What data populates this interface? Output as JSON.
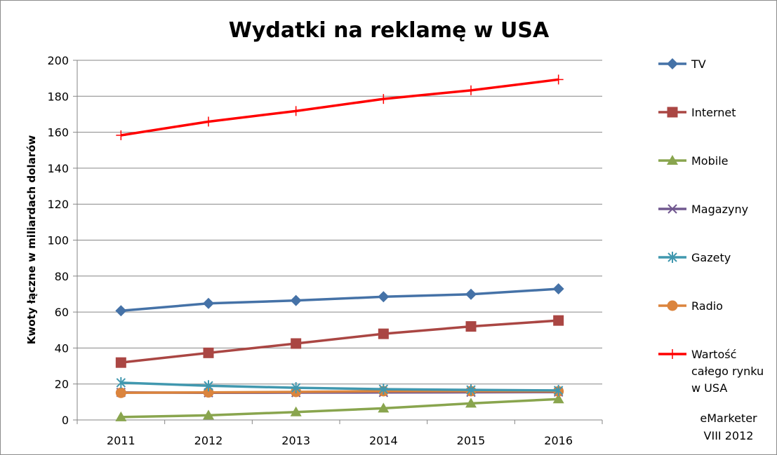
{
  "chart_data": {
    "type": "line",
    "title": "Wydatki na reklamę w USA",
    "xlabel": "",
    "ylabel": "Kwoty łączne w miliardach dolarów",
    "categories": [
      "2011",
      "2012",
      "2013",
      "2014",
      "2015",
      "2016"
    ],
    "ylim": [
      0,
      200
    ],
    "yticks": [
      0,
      20,
      40,
      60,
      80,
      100,
      120,
      140,
      160,
      180,
      200
    ],
    "grid": true,
    "legend_position": "right",
    "series": [
      {
        "name": "TV",
        "color": "#4572a7",
        "marker": "diamond",
        "values": [
          60.7,
          64.8,
          66.4,
          68.5,
          69.9,
          72.9
        ]
      },
      {
        "name": "Internet",
        "color": "#aa4643",
        "marker": "square",
        "values": [
          31.9,
          37.3,
          42.5,
          47.9,
          52.0,
          55.3
        ]
      },
      {
        "name": "Mobile",
        "color": "#89a54e",
        "marker": "triangle",
        "values": [
          1.6,
          2.6,
          4.4,
          6.5,
          9.2,
          11.6
        ]
      },
      {
        "name": "Magazyny",
        "color": "#71588f",
        "marker": "x",
        "values": [
          15.3,
          15.1,
          15.2,
          15.3,
          15.4,
          15.5
        ]
      },
      {
        "name": "Gazety",
        "color": "#4198af",
        "marker": "star",
        "values": [
          20.7,
          19.0,
          17.9,
          17.1,
          16.7,
          16.4
        ]
      },
      {
        "name": "Radio",
        "color": "#db843d",
        "marker": "circle",
        "values": [
          15.1,
          15.3,
          15.6,
          16.0,
          16.0,
          15.9
        ]
      },
      {
        "name": "Wartość całego rynku w USA",
        "legend_lines": [
          "Wartość",
          "całego rynku",
          "w USA"
        ],
        "color": "#ff0000",
        "marker": "plus",
        "values": [
          158.3,
          165.9,
          171.8,
          178.5,
          183.3,
          189.3
        ]
      }
    ]
  },
  "source": {
    "lines": [
      "eMarketer",
      "VIII 2012"
    ]
  }
}
